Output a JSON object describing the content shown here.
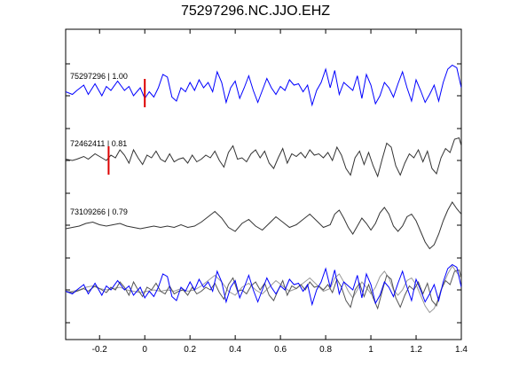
{
  "chart_data": {
    "type": "line",
    "title": "75297296.NC.JJO.EHZ",
    "xlabel": "",
    "ylabel": "",
    "xlim": [
      -0.35,
      1.4
    ],
    "xticks": [
      "-0.2",
      "0",
      "0.2",
      "0.4",
      "0.6",
      "0.8",
      "1",
      "1.2",
      "1.4"
    ],
    "xtick_values": [
      -0.2,
      0,
      0.2,
      0.4,
      0.6,
      0.8,
      1.0,
      1.2,
      1.4
    ],
    "grid": false,
    "traces": [
      {
        "label": "75297296 | 1.00",
        "color": "#0000ff",
        "offset": 3,
        "pick_time": 0.0,
        "points": [
          [
            -0.35,
            0.05
          ],
          [
            -0.32,
            -0.05
          ],
          [
            -0.3,
            0.1
          ],
          [
            -0.27,
            0.3
          ],
          [
            -0.25,
            -0.05
          ],
          [
            -0.22,
            0.35
          ],
          [
            -0.19,
            -0.1
          ],
          [
            -0.17,
            0.25
          ],
          [
            -0.15,
            0.1
          ],
          [
            -0.12,
            0.45
          ],
          [
            -0.09,
            0.1
          ],
          [
            -0.07,
            0.25
          ],
          [
            -0.05,
            -0.1
          ],
          [
            -0.02,
            0.2
          ],
          [
            0.0,
            -0.2
          ],
          [
            0.02,
            0.05
          ],
          [
            0.04,
            -0.15
          ],
          [
            0.06,
            0.2
          ],
          [
            0.08,
            0.7
          ],
          [
            0.1,
            0.6
          ],
          [
            0.12,
            -0.15
          ],
          [
            0.14,
            -0.3
          ],
          [
            0.16,
            0.2
          ],
          [
            0.18,
            0.05
          ],
          [
            0.2,
            0.4
          ],
          [
            0.22,
            0.1
          ],
          [
            0.24,
            0.5
          ],
          [
            0.26,
            0.2
          ],
          [
            0.28,
            0.4
          ],
          [
            0.3,
            0.05
          ],
          [
            0.32,
            0.8
          ],
          [
            0.34,
            0.4
          ],
          [
            0.36,
            -0.35
          ],
          [
            0.38,
            0.2
          ],
          [
            0.4,
            0.45
          ],
          [
            0.42,
            -0.2
          ],
          [
            0.44,
            0.2
          ],
          [
            0.46,
            0.65
          ],
          [
            0.48,
            0.1
          ],
          [
            0.5,
            -0.35
          ],
          [
            0.52,
            0.1
          ],
          [
            0.54,
            0.55
          ],
          [
            0.56,
            0.2
          ],
          [
            0.58,
            -0.05
          ],
          [
            0.6,
            0.25
          ],
          [
            0.62,
            0.1
          ],
          [
            0.64,
            0.5
          ],
          [
            0.66,
            0.3
          ],
          [
            0.68,
            0.35
          ],
          [
            0.7,
            0.05
          ],
          [
            0.72,
            0.3
          ],
          [
            0.74,
            -0.45
          ],
          [
            0.76,
            0.1
          ],
          [
            0.78,
            0.4
          ],
          [
            0.8,
            0.9
          ],
          [
            0.82,
            0.2
          ],
          [
            0.84,
            0.85
          ],
          [
            0.86,
            -0.05
          ],
          [
            0.88,
            0.4
          ],
          [
            0.9,
            0.25
          ],
          [
            0.92,
            0.1
          ],
          [
            0.94,
            0.65
          ],
          [
            0.96,
            -0.2
          ],
          [
            0.98,
            0.7
          ],
          [
            1.0,
            0.3
          ],
          [
            1.02,
            -0.4
          ],
          [
            1.04,
            -0.1
          ],
          [
            1.06,
            0.4
          ],
          [
            1.08,
            0.2
          ],
          [
            1.1,
            -0.15
          ],
          [
            1.12,
            0.35
          ],
          [
            1.14,
            0.8
          ],
          [
            1.16,
            0.2
          ],
          [
            1.18,
            -0.3
          ],
          [
            1.2,
            0.5
          ],
          [
            1.22,
            0.1
          ],
          [
            1.24,
            -0.35
          ],
          [
            1.26,
            -0.05
          ],
          [
            1.28,
            0.3
          ],
          [
            1.3,
            -0.3
          ],
          [
            1.32,
            0.4
          ],
          [
            1.34,
            0.9
          ],
          [
            1.36,
            1.05
          ],
          [
            1.38,
            0.95
          ],
          [
            1.4,
            0.2
          ]
        ]
      },
      {
        "label": "72462411 | 0.81",
        "color": "#333333",
        "offset": 2,
        "pick_time": -0.16,
        "points": [
          [
            -0.35,
            0.05
          ],
          [
            -0.32,
            0.0
          ],
          [
            -0.3,
            0.05
          ],
          [
            -0.27,
            0.15
          ],
          [
            -0.25,
            0.05
          ],
          [
            -0.22,
            0.25
          ],
          [
            -0.19,
            0.1
          ],
          [
            -0.17,
            0.0
          ],
          [
            -0.15,
            0.2
          ],
          [
            -0.13,
            0.1
          ],
          [
            -0.11,
            0.4
          ],
          [
            -0.09,
            0.2
          ],
          [
            -0.07,
            -0.1
          ],
          [
            -0.05,
            0.4
          ],
          [
            -0.03,
            0.1
          ],
          [
            -0.01,
            -0.15
          ],
          [
            0.01,
            0.2
          ],
          [
            0.03,
            0.1
          ],
          [
            0.05,
            0.35
          ],
          [
            0.07,
            0.05
          ],
          [
            0.09,
            -0.05
          ],
          [
            0.11,
            0.25
          ],
          [
            0.13,
            -0.05
          ],
          [
            0.15,
            0.05
          ],
          [
            0.17,
            0.1
          ],
          [
            0.19,
            -0.1
          ],
          [
            0.21,
            0.2
          ],
          [
            0.23,
            -0.05
          ],
          [
            0.25,
            0.05
          ],
          [
            0.27,
            0.2
          ],
          [
            0.29,
            0.1
          ],
          [
            0.31,
            0.35
          ],
          [
            0.33,
            0.0
          ],
          [
            0.35,
            -0.25
          ],
          [
            0.37,
            0.3
          ],
          [
            0.39,
            0.55
          ],
          [
            0.41,
            0.05
          ],
          [
            0.43,
            0.1
          ],
          [
            0.45,
            -0.05
          ],
          [
            0.47,
            0.25
          ],
          [
            0.49,
            0.4
          ],
          [
            0.51,
            0.1
          ],
          [
            0.53,
            0.35
          ],
          [
            0.55,
            -0.1
          ],
          [
            0.57,
            -0.3
          ],
          [
            0.59,
            0.1
          ],
          [
            0.61,
            0.45
          ],
          [
            0.63,
            -0.1
          ],
          [
            0.65,
            0.25
          ],
          [
            0.67,
            0.15
          ],
          [
            0.69,
            0.3
          ],
          [
            0.71,
            0.1
          ],
          [
            0.73,
            0.4
          ],
          [
            0.75,
            0.2
          ],
          [
            0.77,
            0.25
          ],
          [
            0.79,
            0.1
          ],
          [
            0.81,
            0.3
          ],
          [
            0.83,
            0.0
          ],
          [
            0.85,
            0.5
          ],
          [
            0.87,
            0.2
          ],
          [
            0.89,
            -0.3
          ],
          [
            0.91,
            -0.55
          ],
          [
            0.93,
            0.1
          ],
          [
            0.95,
            0.35
          ],
          [
            0.97,
            -0.15
          ],
          [
            0.99,
            0.3
          ],
          [
            1.01,
            -0.2
          ],
          [
            1.03,
            -0.6
          ],
          [
            1.05,
            0.05
          ],
          [
            1.07,
            0.65
          ],
          [
            1.09,
            0.5
          ],
          [
            1.11,
            -0.2
          ],
          [
            1.13,
            -0.55
          ],
          [
            1.15,
            -0.1
          ],
          [
            1.17,
            0.25
          ],
          [
            1.19,
            0.1
          ],
          [
            1.21,
            0.4
          ],
          [
            1.23,
            -0.05
          ],
          [
            1.25,
            0.35
          ],
          [
            1.27,
            -0.3
          ],
          [
            1.29,
            -0.5
          ],
          [
            1.31,
            0.1
          ],
          [
            1.33,
            0.45
          ],
          [
            1.35,
            0.3
          ],
          [
            1.37,
            0.8
          ],
          [
            1.39,
            0.85
          ],
          [
            1.4,
            0.55
          ]
        ]
      },
      {
        "label": "73109266 | 0.79",
        "color": "#333333",
        "offset": 1,
        "pick_time": null,
        "points": [
          [
            -0.35,
            0.0
          ],
          [
            -0.32,
            0.05
          ],
          [
            -0.29,
            0.1
          ],
          [
            -0.26,
            0.2
          ],
          [
            -0.23,
            0.25
          ],
          [
            -0.2,
            0.15
          ],
          [
            -0.17,
            0.1
          ],
          [
            -0.14,
            0.15
          ],
          [
            -0.11,
            0.2
          ],
          [
            -0.08,
            0.1
          ],
          [
            -0.05,
            0.05
          ],
          [
            -0.02,
            0.0
          ],
          [
            0.01,
            0.05
          ],
          [
            0.04,
            0.1
          ],
          [
            0.07,
            0.05
          ],
          [
            0.1,
            0.1
          ],
          [
            0.13,
            0.05
          ],
          [
            0.16,
            0.15
          ],
          [
            0.19,
            0.05
          ],
          [
            0.22,
            0.1
          ],
          [
            0.25,
            0.25
          ],
          [
            0.28,
            0.45
          ],
          [
            0.31,
            0.65
          ],
          [
            0.34,
            0.4
          ],
          [
            0.37,
            0.05
          ],
          [
            0.4,
            -0.1
          ],
          [
            0.43,
            0.2
          ],
          [
            0.46,
            0.35
          ],
          [
            0.49,
            0.1
          ],
          [
            0.52,
            -0.05
          ],
          [
            0.55,
            0.2
          ],
          [
            0.58,
            0.45
          ],
          [
            0.61,
            0.25
          ],
          [
            0.64,
            0.05
          ],
          [
            0.67,
            0.15
          ],
          [
            0.7,
            0.35
          ],
          [
            0.73,
            0.55
          ],
          [
            0.76,
            0.3
          ],
          [
            0.79,
            0.05
          ],
          [
            0.82,
            0.15
          ],
          [
            0.84,
            0.55
          ],
          [
            0.86,
            0.7
          ],
          [
            0.88,
            0.4
          ],
          [
            0.9,
            0.05
          ],
          [
            0.92,
            -0.2
          ],
          [
            0.94,
            0.1
          ],
          [
            0.96,
            0.4
          ],
          [
            0.98,
            0.2
          ],
          [
            1.0,
            -0.05
          ],
          [
            1.02,
            0.2
          ],
          [
            1.04,
            0.6
          ],
          [
            1.06,
            0.8
          ],
          [
            1.08,
            0.55
          ],
          [
            1.1,
            0.1
          ],
          [
            1.12,
            -0.1
          ],
          [
            1.14,
            0.1
          ],
          [
            1.16,
            0.45
          ],
          [
            1.18,
            0.55
          ],
          [
            1.2,
            0.3
          ],
          [
            1.22,
            -0.1
          ],
          [
            1.24,
            -0.5
          ],
          [
            1.26,
            -0.75
          ],
          [
            1.28,
            -0.6
          ],
          [
            1.3,
            -0.2
          ],
          [
            1.32,
            0.3
          ],
          [
            1.34,
            0.7
          ],
          [
            1.36,
            1.0
          ],
          [
            1.38,
            0.75
          ],
          [
            1.4,
            0.55
          ]
        ]
      }
    ],
    "overlay": {
      "offset": 0,
      "colors": [
        "#0000ff",
        "#555555",
        "#999999"
      ]
    }
  }
}
